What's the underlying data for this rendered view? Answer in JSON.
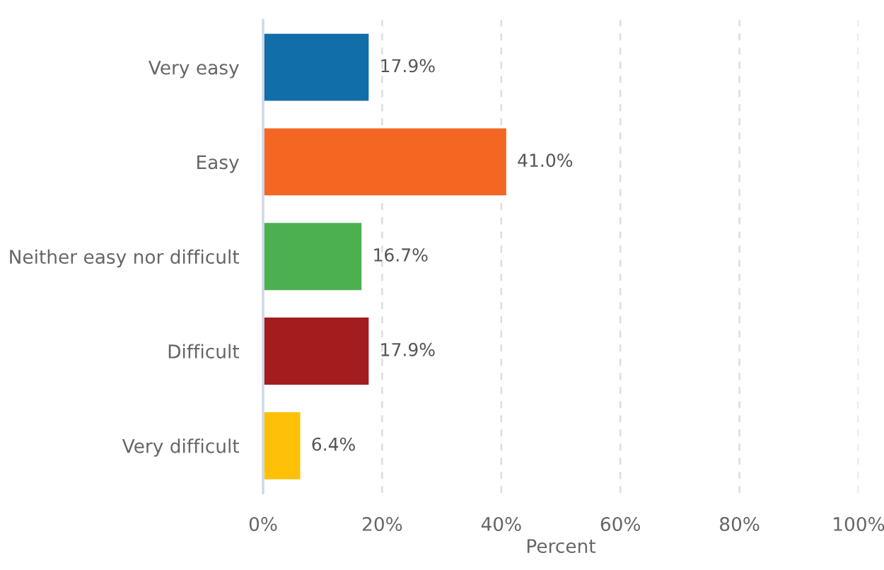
{
  "chart_data": {
    "type": "bar",
    "orientation": "horizontal",
    "xlabel": "Percent",
    "categories": [
      "Very easy",
      "Easy",
      "Neither easy nor difficult",
      "Difficult",
      "Very difficult"
    ],
    "values": [
      17.9,
      41.0,
      16.7,
      17.9,
      6.4
    ],
    "colors": [
      "#126ea8",
      "#f36723",
      "#4caf50",
      "#a31c1e",
      "#ffc107"
    ],
    "value_labels": [
      "17.9%",
      "41.0%",
      "16.7%",
      "17.9%",
      "6.4%"
    ],
    "xlim": [
      0,
      100
    ],
    "xticks": [
      {
        "value": 0,
        "label": "0%"
      },
      {
        "value": 20,
        "label": "20%"
      },
      {
        "value": 40,
        "label": "40%"
      },
      {
        "value": 60,
        "label": "60%"
      },
      {
        "value": 80,
        "label": "80%"
      },
      {
        "value": 100,
        "label": "100%"
      }
    ],
    "grid": "x",
    "legend": false
  }
}
